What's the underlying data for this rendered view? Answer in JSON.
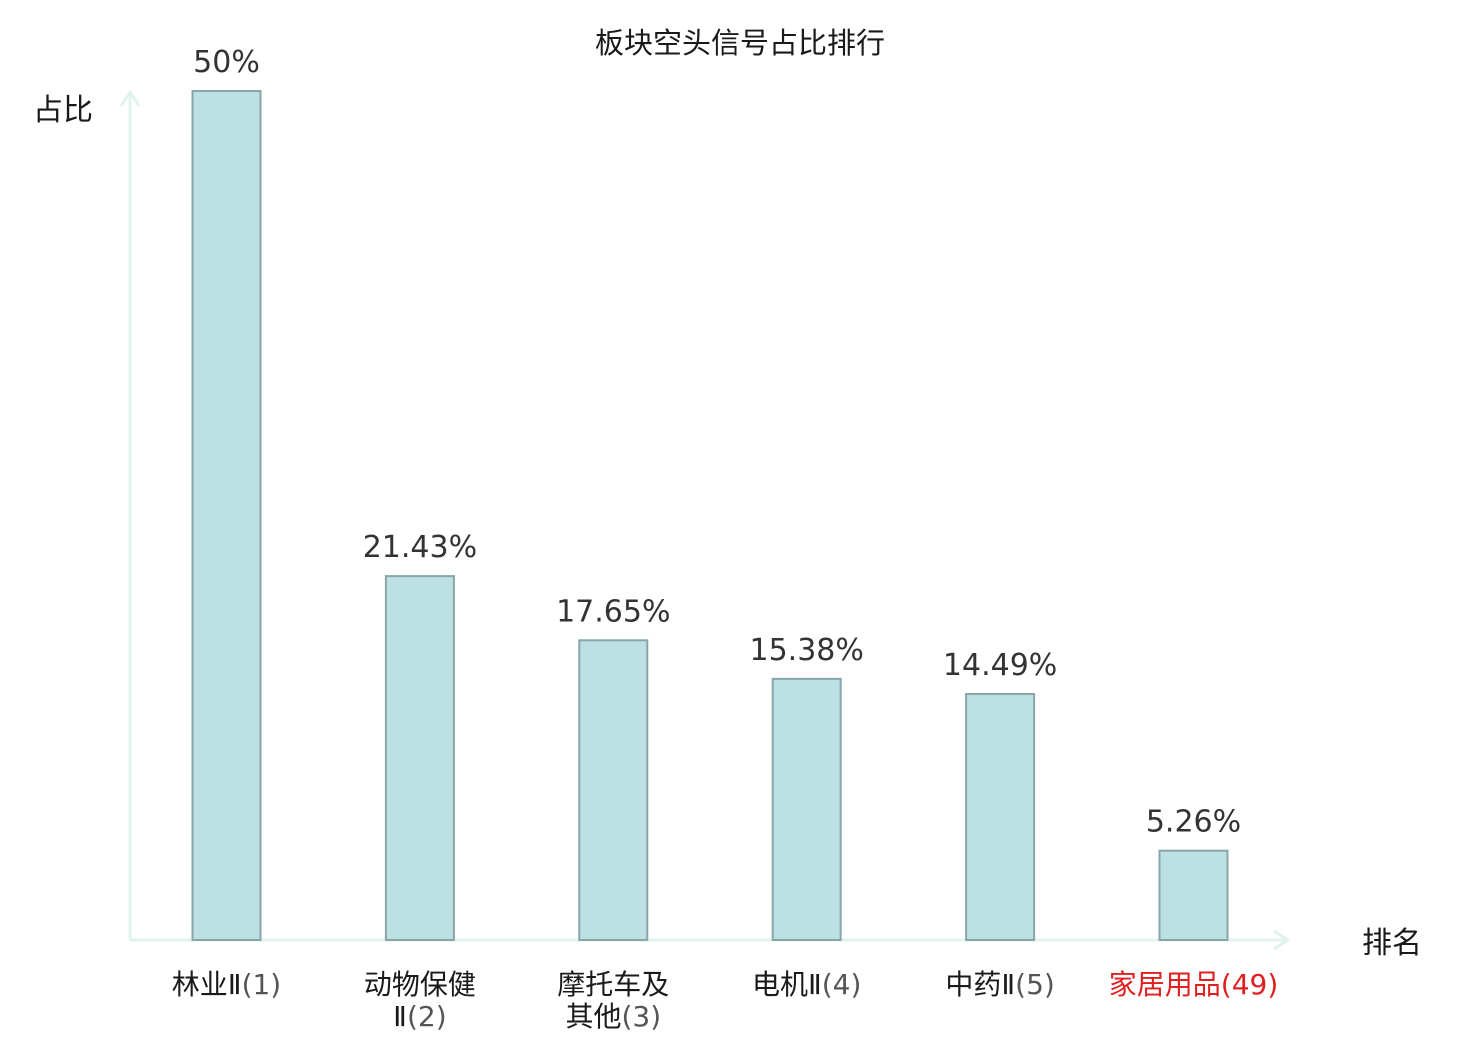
{
  "chart_data": {
    "type": "bar",
    "title": "板块空头信号占比排行",
    "ylabel": "占比",
    "xlabel": "排名",
    "ylim": [
      0,
      50
    ],
    "grid": false,
    "legend": "none",
    "categories": [
      {
        "name_lines": [
          "林业Ⅱ"
        ],
        "rank": "(1)"
      },
      {
        "name_lines": [
          "动物保健",
          "Ⅱ"
        ],
        "rank": "(2)"
      },
      {
        "name_lines": [
          "摩托车及",
          "其他"
        ],
        "rank": "(3)"
      },
      {
        "name_lines": [
          "电机Ⅱ"
        ],
        "rank": "(4)"
      },
      {
        "name_lines": [
          "中药Ⅱ"
        ],
        "rank": "(5)"
      },
      {
        "name_lines": [
          "家居用品"
        ],
        "rank": "(49)",
        "highlight": true
      }
    ],
    "values": [
      50,
      21.43,
      17.65,
      15.38,
      14.49,
      5.26
    ],
    "value_labels": [
      "50%",
      "21.43%",
      "17.65%",
      "15.38%",
      "14.49%",
      "5.26%"
    ]
  },
  "colors": {
    "bar_fill": "#bde0e3",
    "bar_stroke": "#86a6a9",
    "axis": "#e1f3ef",
    "value_text": "#333333",
    "category_text": "#1a1a1a",
    "rank_text": "#555555",
    "highlight_text": "#e02020"
  }
}
